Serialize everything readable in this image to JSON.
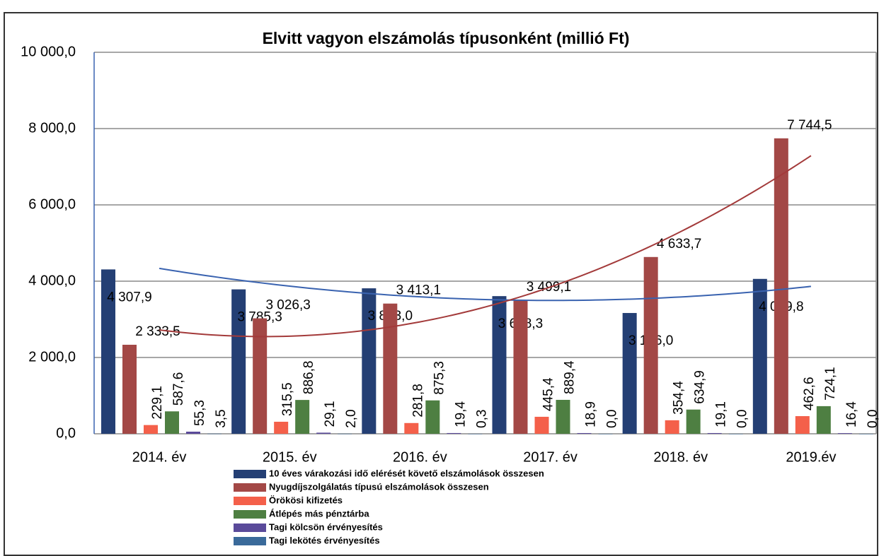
{
  "chart_data": {
    "type": "bar",
    "title": "Elvitt vagyon elszámolás típusonként (millió Ft)",
    "categories": [
      "2014. év",
      "2015. év",
      "2016. év",
      "2017. év",
      "2018. év",
      "2019.év"
    ],
    "ylim": [
      0,
      10000
    ],
    "yticks": [
      {
        "value": 0,
        "label": "0,0"
      },
      {
        "value": 2000,
        "label": "2 000,0"
      },
      {
        "value": 4000,
        "label": "4 000,0"
      },
      {
        "value": 6000,
        "label": "6 000,0"
      },
      {
        "value": 8000,
        "label": "8 000,0"
      },
      {
        "value": 10000,
        "label": "10 000,0"
      }
    ],
    "grid": true,
    "series": [
      {
        "name": "10 éves várakozási idő elérését követő elszámolások összesen",
        "color": "#243f74",
        "values": [
          4307.9,
          3785.3,
          3813.0,
          3608.3,
          3166.0,
          4059.8
        ],
        "value_labels": [
          "4 307,9",
          "3 785,3",
          "3 813,0",
          "3 608,3",
          "3 166,0",
          "4 059,8"
        ],
        "trendline": true,
        "trend_color": "#3a63b0"
      },
      {
        "name": "Nyugdíjszolgálatás típusú elszámolások összesen",
        "color": "#a34846",
        "values": [
          2333.5,
          3026.3,
          3413.1,
          3499.1,
          4633.7,
          7744.5
        ],
        "value_labels": [
          "2 333,5",
          "3 026,3",
          "3 413,1",
          "3 499,1",
          "4 633,7",
          "7 744,5"
        ],
        "trendline": true,
        "trend_color": "#a33a3a"
      },
      {
        "name": "Örökösi kifizetés",
        "color": "#f4604a",
        "values": [
          229.1,
          315.5,
          281.8,
          445.4,
          354.4,
          462.6
        ],
        "value_labels": [
          "229,1",
          "315,5",
          "281,8",
          "445,4",
          "354,4",
          "462,6"
        ]
      },
      {
        "name": "Átlépés más pénztárba",
        "color": "#4e7f42",
        "values": [
          587.6,
          886.8,
          875.3,
          889.4,
          634.9,
          724.1
        ],
        "value_labels": [
          "587,6",
          "886,8",
          "875,3",
          "889,4",
          "634,9",
          "724,1"
        ]
      },
      {
        "name": "Tagi kölcsön érvényesítés",
        "color": "#5a4a9a",
        "values": [
          55.3,
          29.1,
          19.4,
          18.9,
          19.1,
          16.4
        ],
        "value_labels": [
          "55,3",
          "29,1",
          "19,4",
          "18,9",
          "19,1",
          "16,4"
        ]
      },
      {
        "name": "Tagi lekötés érvényesítés",
        "color": "#3a6a9a",
        "values": [
          3.5,
          2.0,
          0.3,
          0.0,
          0.0,
          0.0
        ],
        "value_labels": [
          "3,5",
          "2,0",
          "0,3",
          "0,0",
          "0,0",
          "0,0"
        ]
      }
    ]
  }
}
